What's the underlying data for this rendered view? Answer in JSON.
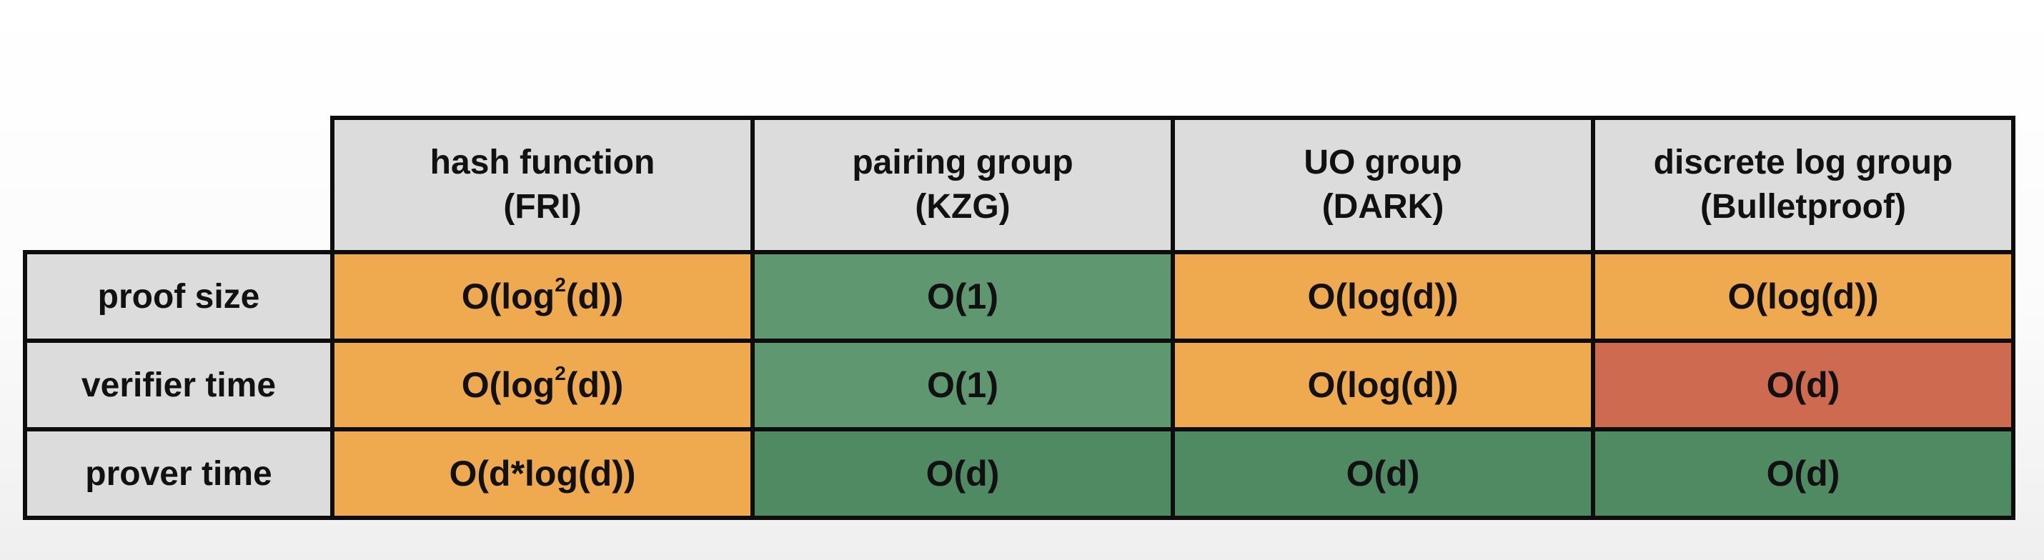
{
  "table": {
    "columns": [
      {
        "line1": "hash function",
        "line2": "(FRI)"
      },
      {
        "line1": "pairing group",
        "line2": "(KZG)"
      },
      {
        "line1": "UO group",
        "line2": "(DARK)"
      },
      {
        "line1": "discrete log group",
        "line2": "(Bulletproof)"
      }
    ],
    "rows": [
      {
        "label": "proof size",
        "cells": [
          {
            "pre": "O(log",
            "sup": "2",
            "post": "(d))",
            "color": "#efaa50"
          },
          {
            "pre": "O(1)",
            "sup": "",
            "post": "",
            "color": "#5e9770"
          },
          {
            "pre": "O(log(d))",
            "sup": "",
            "post": "",
            "color": "#efaa50"
          },
          {
            "pre": "O(log(d))",
            "sup": "",
            "post": "",
            "color": "#efaa50"
          }
        ]
      },
      {
        "label": "verifier time",
        "cells": [
          {
            "pre": "O(log",
            "sup": "2",
            "post": "(d))",
            "color": "#efaa50"
          },
          {
            "pre": "O(1)",
            "sup": "",
            "post": "",
            "color": "#5e9770"
          },
          {
            "pre": "O(log(d))",
            "sup": "",
            "post": "",
            "color": "#efaa50"
          },
          {
            "pre": "O(d)",
            "sup": "",
            "post": "",
            "color": "#ce6a50"
          }
        ]
      },
      {
        "label": "prover time",
        "cells": [
          {
            "pre": "O(d*log(d))",
            "sup": "",
            "post": "",
            "color": "#efaa50"
          },
          {
            "pre": "O(d)",
            "sup": "",
            "post": "",
            "color": "#4f8a62"
          },
          {
            "pre": "O(d)",
            "sup": "",
            "post": "",
            "color": "#4f8a62"
          },
          {
            "pre": "O(d)",
            "sup": "",
            "post": "",
            "color": "#4f8a62"
          }
        ]
      }
    ]
  }
}
